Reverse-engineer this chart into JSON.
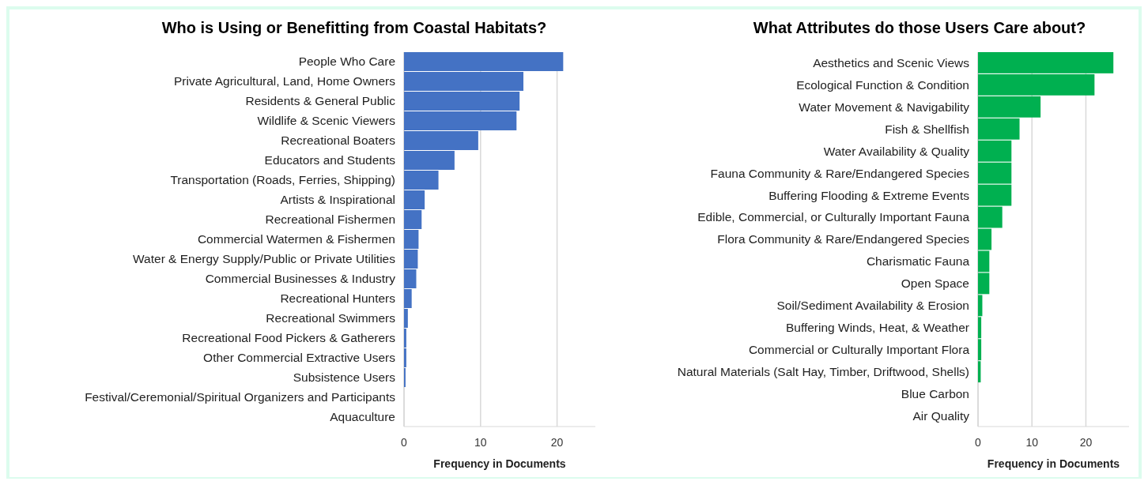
{
  "chart_data": [
    {
      "type": "bar",
      "orientation": "horizontal",
      "title": "Who is Using or Benefitting from Coastal Habitats?",
      "xlabel": "Frequency in Documents",
      "categories": [
        "People Who Care",
        "Private Agricultural, Land, Home Owners",
        "Residents & General Public",
        "Wildlife & Scenic Viewers",
        "Recreational Boaters",
        "Educators and Students",
        "Transportation (Roads, Ferries, Shipping)",
        "Artists & Inspirational",
        "Recreational Fishermen",
        "Commercial Watermen & Fishermen",
        "Water & Energy Supply/Public or Private Utilities",
        "Commercial Businesses & Industry",
        "Recreational Hunters",
        "Recreational Swimmers",
        "Recreational Food Pickers & Gatherers",
        "Other Commercial Extractive Users",
        "Subsistence Users",
        "Festival/Ceremonial/Spiritual Organizers and Participants",
        "Aquaculture"
      ],
      "values": [
        20.8,
        15.6,
        15.1,
        14.7,
        9.7,
        6.6,
        4.5,
        2.7,
        2.3,
        1.9,
        1.8,
        1.6,
        1.0,
        0.5,
        0.3,
        0.3,
        0.2,
        0,
        0
      ],
      "color": "#4472c4",
      "xlim": [
        0,
        25
      ],
      "xticks": [
        0,
        10,
        20
      ],
      "grid": "x"
    },
    {
      "type": "bar",
      "orientation": "horizontal",
      "title": "What Attributes do those Users Care about?",
      "xlabel": "Frequency in Documents",
      "categories": [
        "Aesthetics and Scenic Views",
        "Ecological Function & Condition",
        "Water Movement & Navigability",
        "Fish & Shellfish",
        "Water Availability & Quality",
        "Fauna Community & Rare/Endangered Species",
        "Buffering Flooding & Extreme Events",
        "Edible, Commercial, or Culturally Important Fauna",
        "Flora Community & Rare/Endangered Species",
        "Charismatic Fauna",
        "Open Space",
        "Soil/Sediment Availability & Erosion",
        "Buffering Winds, Heat, & Weather",
        "Commercial or Culturally Important Flora",
        "Natural Materials (Salt Hay, Timber, Driftwood, Shells)",
        "Blue Carbon",
        "Air Quality"
      ],
      "values": [
        25.1,
        21.6,
        11.6,
        7.7,
        6.2,
        6.2,
        6.2,
        4.5,
        2.5,
        2.1,
        2.1,
        0.8,
        0.6,
        0.6,
        0.5,
        0,
        0
      ],
      "color": "#00b050",
      "xlim": [
        0,
        28
      ],
      "xticks": [
        0,
        10,
        20
      ],
      "grid": "x"
    }
  ]
}
